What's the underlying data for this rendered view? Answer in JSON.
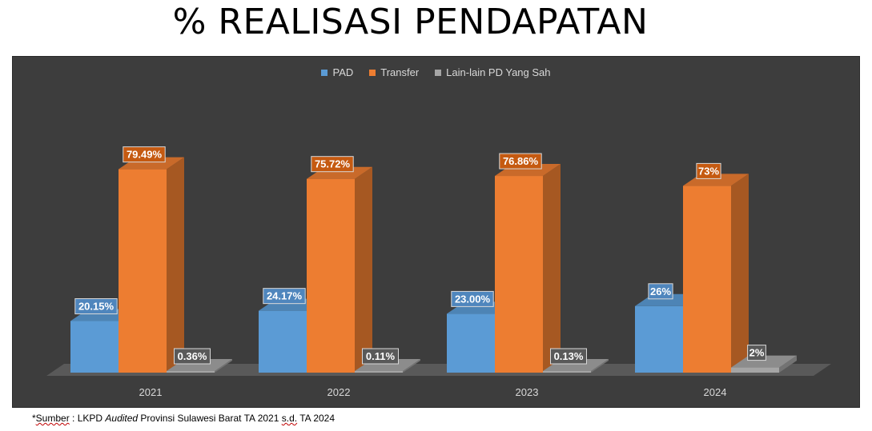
{
  "title": "% REALISASI PENDAPATAN",
  "legend": [
    {
      "label": "PAD",
      "color": "#5b9bd5"
    },
    {
      "label": "Transfer",
      "color": "#ed7d31"
    },
    {
      "label": "Lain-lain PD Yang Sah",
      "color": "#a5a5a5"
    }
  ],
  "footnote": {
    "star": "*",
    "sumber": "Sumber",
    "part1": " : LKPD ",
    "audited": "Audited",
    "part2": " Provinsi Sulawesi Barat TA 2021 ",
    "sd": "s.d.",
    "part3": " TA 2024"
  },
  "chart_data": {
    "type": "bar",
    "categories": [
      "2021",
      "2022",
      "2023",
      "2024"
    ],
    "series": [
      {
        "name": "PAD",
        "color": "#5b9bd5",
        "values": [
          20.15,
          24.17,
          23.0,
          26
        ],
        "labels": [
          "20.15%",
          "24.17%",
          "23.00%",
          "26%"
        ]
      },
      {
        "name": "Transfer",
        "color": "#ed7d31",
        "values": [
          79.49,
          75.72,
          76.86,
          73
        ],
        "labels": [
          "79.49%",
          "75.72%",
          "76.86%",
          "73%"
        ]
      },
      {
        "name": "Lain-lain PD Yang Sah",
        "color": "#a5a5a5",
        "values": [
          0.36,
          0.11,
          0.13,
          2
        ],
        "labels": [
          "0.36%",
          "0.11%",
          "0.13%",
          "2%"
        ]
      }
    ],
    "ylim": [
      0,
      100
    ],
    "grid": false,
    "legend_position": "top",
    "style": "3d-clustered-column"
  }
}
